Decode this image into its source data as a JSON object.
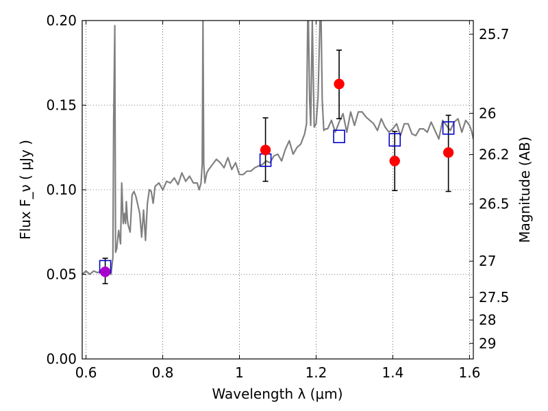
{
  "chart_data": {
    "type": "scatter",
    "xlabel": "Wavelength  λ (μm)",
    "ylabel": "Flux  F_ν  ( μJy )",
    "ylabel_right": "Magnitude (AB)",
    "xlim": [
      0.59,
      1.61
    ],
    "ylim": [
      0.0,
      0.2
    ],
    "grid": true,
    "x_ticks": [
      0.6,
      0.8,
      1.0,
      1.2,
      1.4,
      1.6
    ],
    "x_tick_labels": [
      "0.6",
      "0.8",
      "1",
      "1.2",
      "1.4",
      "1.6"
    ],
    "y_ticks": [
      0.0,
      0.05,
      0.1,
      0.15,
      0.2
    ],
    "y_tick_labels": [
      "0.00",
      "0.05",
      "0.10",
      "0.15",
      "0.20"
    ],
    "right_ticks": [
      {
        "label": "25.7",
        "flux": 0.1919
      },
      {
        "label": "26",
        "flux": 0.1452
      },
      {
        "label": "26.2",
        "flux": 0.1208
      },
      {
        "label": "26.5",
        "flux": 0.0916
      },
      {
        "label": "27",
        "flux": 0.0578
      },
      {
        "label": "27.5",
        "flux": 0.0364
      },
      {
        "label": "28",
        "flux": 0.023
      },
      {
        "label": "29",
        "flux": 0.0092
      }
    ],
    "series": [
      {
        "kind": "model-spectrum",
        "color": "#808080",
        "x": [
          0.59,
          0.6,
          0.61,
          0.62,
          0.63,
          0.64,
          0.65,
          0.66,
          0.665,
          0.67,
          0.672,
          0.675,
          0.677,
          0.68,
          0.685,
          0.69,
          0.693,
          0.697,
          0.7,
          0.703,
          0.705,
          0.708,
          0.71,
          0.715,
          0.72,
          0.725,
          0.73,
          0.74,
          0.745,
          0.75,
          0.755,
          0.76,
          0.765,
          0.77,
          0.775,
          0.78,
          0.79,
          0.8,
          0.81,
          0.82,
          0.83,
          0.84,
          0.85,
          0.86,
          0.87,
          0.88,
          0.89,
          0.895,
          0.9,
          0.903,
          0.905,
          0.907,
          0.91,
          0.915,
          0.92,
          0.93,
          0.94,
          0.95,
          0.96,
          0.97,
          0.98,
          0.99,
          1.0,
          1.01,
          1.02,
          1.03,
          1.04,
          1.05,
          1.06,
          1.07,
          1.08,
          1.09,
          1.1,
          1.11,
          1.12,
          1.13,
          1.14,
          1.15,
          1.16,
          1.17,
          1.175,
          1.178,
          1.18,
          1.183,
          1.186,
          1.19,
          1.195,
          1.2,
          1.205,
          1.21,
          1.213,
          1.216,
          1.22,
          1.225,
          1.23,
          1.24,
          1.25,
          1.26,
          1.27,
          1.28,
          1.29,
          1.3,
          1.31,
          1.32,
          1.33,
          1.34,
          1.35,
          1.36,
          1.37,
          1.38,
          1.39,
          1.4,
          1.41,
          1.42,
          1.43,
          1.44,
          1.45,
          1.46,
          1.47,
          1.48,
          1.49,
          1.5,
          1.51,
          1.52,
          1.53,
          1.54,
          1.55,
          1.56,
          1.57,
          1.58,
          1.59,
          1.6,
          1.605,
          1.61
        ],
        "y": [
          0.05,
          0.052,
          0.05,
          0.052,
          0.051,
          0.052,
          0.053,
          0.052,
          0.05,
          0.06,
          0.14,
          0.197,
          0.063,
          0.065,
          0.076,
          0.068,
          0.104,
          0.08,
          0.086,
          0.08,
          0.093,
          0.082,
          0.079,
          0.075,
          0.097,
          0.099,
          0.096,
          0.086,
          0.072,
          0.088,
          0.07,
          0.092,
          0.1,
          0.099,
          0.092,
          0.102,
          0.104,
          0.1,
          0.105,
          0.104,
          0.107,
          0.103,
          0.11,
          0.105,
          0.108,
          0.104,
          0.104,
          0.1,
          0.104,
          0.115,
          0.2,
          0.115,
          0.104,
          0.11,
          0.112,
          0.115,
          0.118,
          0.116,
          0.113,
          0.119,
          0.112,
          0.116,
          0.109,
          0.109,
          0.111,
          0.111,
          0.113,
          0.114,
          0.115,
          0.117,
          0.116,
          0.12,
          0.121,
          0.117,
          0.124,
          0.129,
          0.121,
          0.125,
          0.127,
          0.133,
          0.139,
          0.2,
          0.2,
          0.153,
          0.138,
          0.2,
          0.137,
          0.139,
          0.155,
          0.2,
          0.2,
          0.153,
          0.135,
          0.136,
          0.136,
          0.141,
          0.134,
          0.14,
          0.145,
          0.134,
          0.146,
          0.138,
          0.146,
          0.146,
          0.143,
          0.141,
          0.139,
          0.135,
          0.142,
          0.137,
          0.134,
          0.136,
          0.139,
          0.132,
          0.139,
          0.139,
          0.133,
          0.132,
          0.136,
          0.136,
          0.134,
          0.14,
          0.135,
          0.13,
          0.141,
          0.138,
          0.135,
          0.14,
          0.142,
          0.134,
          0.141,
          0.138,
          0.135,
          0.13
        ]
      },
      {
        "kind": "model-photometry",
        "marker": "open-square",
        "color": "#0000cc",
        "x": [
          0.65,
          1.068,
          1.26,
          1.405,
          1.545
        ],
        "y": [
          0.0545,
          0.1175,
          0.1315,
          0.1295,
          0.1365
        ]
      },
      {
        "kind": "observed-photometry",
        "marker": "filled-circle",
        "color": "#ff0000",
        "x": [
          1.068,
          1.26,
          1.405,
          1.545
        ],
        "y": [
          0.1235,
          0.1625,
          0.117,
          0.122
        ],
        "err_low": [
          0.105,
          0.142,
          0.0995,
          0.099
        ],
        "err_high": [
          0.1425,
          0.1825,
          0.1345,
          0.144
        ]
      },
      {
        "kind": "observed-photometry",
        "marker": "filled-circle",
        "color": "#aa00cc",
        "x": [
          0.65
        ],
        "y": [
          0.0515
        ],
        "err_low": [
          0.0445
        ],
        "err_high": [
          0.0595
        ]
      }
    ]
  }
}
